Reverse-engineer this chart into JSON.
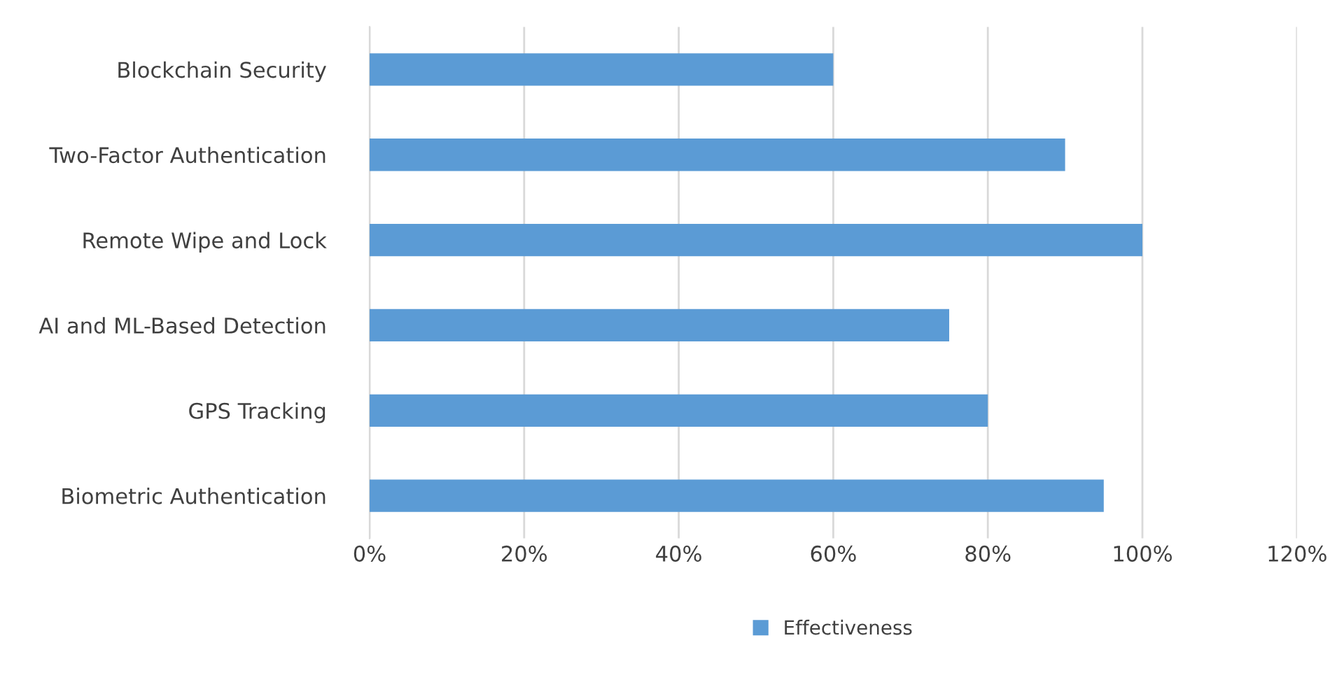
{
  "chart_data": {
    "type": "bar",
    "orientation": "horizontal",
    "categories": [
      "Blockchain Security",
      "Two-Factor Authentication",
      "Remote Wipe and Lock",
      "AI and ML-Based Detection",
      "GPS Tracking",
      "Biometric Authentication"
    ],
    "series": [
      {
        "name": "Effectiveness",
        "color": "#5b9bd5",
        "values": [
          60,
          90,
          100,
          75,
          80,
          95
        ]
      }
    ],
    "xlim": [
      0,
      120
    ],
    "xticks": [
      {
        "value": 0,
        "label": "0%"
      },
      {
        "value": 20,
        "label": "20%"
      },
      {
        "value": 40,
        "label": "40%"
      },
      {
        "value": 60,
        "label": "60%"
      },
      {
        "value": 80,
        "label": "80%"
      },
      {
        "value": 100,
        "label": "100%"
      },
      {
        "value": 120,
        "label": "120%"
      }
    ],
    "grid": "x",
    "legend": "bottom"
  }
}
